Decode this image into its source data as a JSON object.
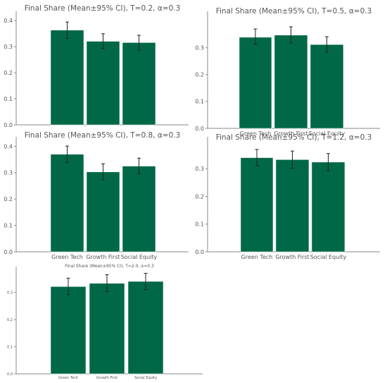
{
  "colors": {
    "bar": "#006847",
    "bar_edge": "#ffffff",
    "axis": "#888888",
    "text": "#555555",
    "error_bar": "#222222"
  },
  "chart_data": [
    {
      "type": "bar",
      "title": "Final Share (Mean±95% CI), T=0.2, α=0.3",
      "categories": [
        "Green Tech",
        "Growth First",
        "Social Equity"
      ],
      "values": [
        0.364,
        0.321,
        0.316
      ],
      "error_low": [
        0.332,
        0.293,
        0.287
      ],
      "error_high": [
        0.395,
        0.35,
        0.344
      ],
      "ylim": [
        0,
        0.42
      ],
      "yticks": [
        0.0,
        0.1,
        0.2,
        0.3,
        0.4
      ],
      "ytick_labels": [
        "0.0",
        "0.1",
        "0.2",
        "0.3",
        "0.4"
      ],
      "show_category_labels": false,
      "grid": false
    },
    {
      "type": "bar",
      "title": "Final Share (Mean±95% CI), T=0.5, α=0.3",
      "categories": [
        "Green Tech",
        "Growth First",
        "Social Equity"
      ],
      "values": [
        0.339,
        0.347,
        0.312
      ],
      "error_low": [
        0.312,
        0.318,
        0.283
      ],
      "error_high": [
        0.37,
        0.378,
        0.341
      ],
      "ylim": [
        0,
        0.42
      ],
      "yticks": [
        0.0,
        0.1,
        0.2,
        0.3
      ],
      "ytick_labels": [
        "0.0",
        "0.1",
        "0.2",
        "0.3"
      ],
      "show_category_labels": true,
      "grid": false
    },
    {
      "type": "bar",
      "title": "Final Share (Mean±95% CI), T=0.8, α=0.3",
      "categories": [
        "Green Tech",
        "Growth First",
        "Social Equity"
      ],
      "values": [
        0.37,
        0.303,
        0.325
      ],
      "error_low": [
        0.338,
        0.273,
        0.296
      ],
      "error_high": [
        0.401,
        0.334,
        0.355
      ],
      "ylim": [
        0,
        0.42
      ],
      "yticks": [
        0.0,
        0.1,
        0.2,
        0.3,
        0.4
      ],
      "ytick_labels": [
        "0.0",
        "0.1",
        "0.2",
        "0.3",
        "0.4"
      ],
      "show_category_labels": true,
      "grid": false
    },
    {
      "type": "bar",
      "title": "Final Share (Mean±95% CI), T=1.2, α=0.3",
      "categories": [
        "Green Tech",
        "Growth First",
        "Social Equity"
      ],
      "values": [
        0.34,
        0.333,
        0.324
      ],
      "error_low": [
        0.311,
        0.302,
        0.293
      ],
      "error_high": [
        0.37,
        0.364,
        0.355
      ],
      "ylim": [
        0,
        0.4
      ],
      "yticks": [
        0.0,
        0.1,
        0.2,
        0.3
      ],
      "ytick_labels": [
        "0.0",
        "0.1",
        "0.2",
        "0.3"
      ],
      "show_category_labels": true,
      "grid": false
    },
    {
      "type": "bar",
      "title": "Final Share (Mean±95% CI), T=2.0, α=0.3",
      "categories": [
        "Green Tech",
        "Growth First",
        "Social Equity"
      ],
      "values": [
        0.322,
        0.334,
        0.341
      ],
      "error_low": [
        0.292,
        0.303,
        0.311
      ],
      "error_high": [
        0.353,
        0.366,
        0.371
      ],
      "ylim": [
        0,
        0.38
      ],
      "yticks": [
        0.0,
        0.1,
        0.2,
        0.3
      ],
      "ytick_labels": [
        "0.0",
        "0.1",
        "0.2",
        "0.3"
      ],
      "show_category_labels": true,
      "grid": false
    }
  ]
}
